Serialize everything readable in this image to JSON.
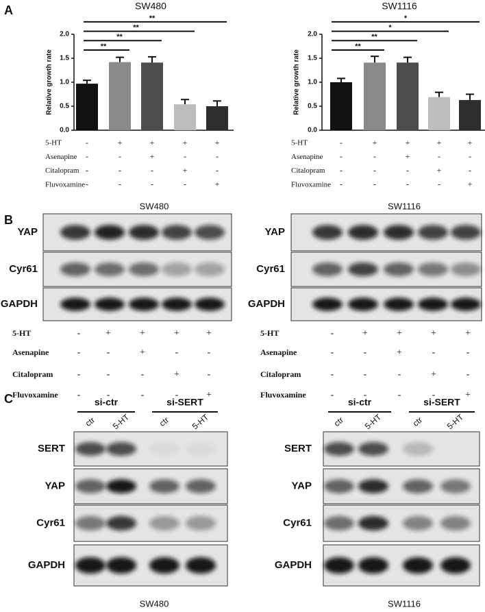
{
  "panel_a": {
    "label": "A"
  },
  "chart_data": [
    {
      "type": "bar",
      "title": "SW480",
      "y_label": "Relative growth rate",
      "categories": [
        null,
        null,
        null,
        null,
        null
      ],
      "values": [
        0.97,
        1.42,
        1.41,
        0.54,
        0.5
      ],
      "errors": [
        0.07,
        0.1,
        0.12,
        0.1,
        0.11
      ],
      "colors": [
        "#111111",
        "#8a8a8a",
        "#4d4d4d",
        "#bdbdbd",
        "#2e2e2e"
      ],
      "ylim": [
        0,
        2
      ],
      "yticks": [
        {
          "value": 0,
          "label": "0.0"
        },
        {
          "value": 0.5,
          "label": "0.5"
        },
        {
          "value": 1,
          "label": "1.0"
        },
        {
          "value": 1.5,
          "label": "1.5"
        },
        {
          "value": 2,
          "label": "2.0"
        }
      ],
      "significance": [
        "**",
        "**",
        "**",
        "**"
      ],
      "treatments": [
        {
          "name": "5-HT",
          "signs": [
            "-",
            "+",
            "+",
            "+",
            "+"
          ]
        },
        {
          "name": "Asenapine",
          "signs": [
            "-",
            "-",
            "+",
            "-",
            "-"
          ]
        },
        {
          "name": "Citalopram",
          "signs": [
            "-",
            "-",
            "-",
            "+",
            "-"
          ]
        },
        {
          "name": "Fluvoxamine",
          "signs": [
            "-",
            "-",
            "-",
            "-",
            "+"
          ]
        }
      ]
    },
    {
      "type": "bar",
      "title": "SW1116",
      "y_label": "Relative growth rate",
      "categories": [
        null,
        null,
        null,
        null,
        null
      ],
      "values": [
        1.0,
        1.41,
        1.41,
        0.69,
        0.63
      ],
      "errors": [
        0.08,
        0.13,
        0.11,
        0.1,
        0.12
      ],
      "colors": [
        "#111111",
        "#8a8a8a",
        "#4d4d4d",
        "#bdbdbd",
        "#2e2e2e"
      ],
      "ylim": [
        0,
        2
      ],
      "yticks": [
        {
          "value": 0,
          "label": "0.0"
        },
        {
          "value": 0.5,
          "label": "0.5"
        },
        {
          "value": 1,
          "label": "1.0"
        },
        {
          "value": 1.5,
          "label": "1.5"
        },
        {
          "value": 2,
          "label": "2.0"
        }
      ],
      "significance": [
        "**",
        "**",
        "*",
        "*"
      ],
      "treatments": [
        {
          "name": "5-HT",
          "signs": [
            "-",
            "+",
            "+",
            "+",
            "+"
          ]
        },
        {
          "name": "Asenapine",
          "signs": [
            "-",
            "-",
            "+",
            "-",
            "-"
          ]
        },
        {
          "name": "Citalopram",
          "signs": [
            "-",
            "-",
            "-",
            "+",
            "-"
          ]
        },
        {
          "name": "Fluvoxamine",
          "signs": [
            "-",
            "-",
            "-",
            "-",
            "+"
          ]
        }
      ]
    }
  ],
  "panel_b": {
    "label": "B",
    "blots": [
      {
        "title": "SW480",
        "rows": [
          "YAP",
          "Cyr61",
          "GAPDH"
        ],
        "treatments": [
          {
            "name": "5-HT",
            "signs": [
              "-",
              "+",
              "+",
              "+",
              "+"
            ]
          },
          {
            "name": "Asenapine",
            "signs": [
              "-",
              "-",
              "+",
              "-",
              "-"
            ]
          },
          {
            "name": "Citalopram",
            "signs": [
              "-",
              "-",
              "-",
              "+",
              "-"
            ]
          },
          {
            "name": "Fluvoxamine",
            "signs": [
              "-",
              "-",
              "-",
              "-",
              "+"
            ]
          }
        ]
      },
      {
        "title": "SW1116",
        "rows": [
          "YAP",
          "Cyr61",
          "GAPDH"
        ],
        "treatments": [
          {
            "name": "5-HT",
            "signs": [
              "-",
              "+",
              "+",
              "+",
              "+"
            ]
          },
          {
            "name": "Asenapine",
            "signs": [
              "-",
              "-",
              "+",
              "-",
              "-"
            ]
          },
          {
            "name": "Citalopram",
            "signs": [
              "-",
              "-",
              "-",
              "+",
              "-"
            ]
          },
          {
            "name": "Fluvoxamine",
            "signs": [
              "-",
              "-",
              "-",
              "-",
              "+"
            ]
          }
        ]
      }
    ]
  },
  "panel_c": {
    "label": "C",
    "blots": [
      {
        "caption": "SW480",
        "groups": [
          {
            "name": "si-ctr",
            "lanes": [
              "ctr",
              "5-HT"
            ]
          },
          {
            "name": "si-SERT",
            "lanes": [
              "ctr",
              "5-HT"
            ]
          }
        ],
        "rows": [
          "SERT",
          "YAP",
          "Cyr61",
          "GAPDH"
        ]
      },
      {
        "caption": "SW1116",
        "groups": [
          {
            "name": "si-ctr",
            "lanes": [
              "ctr",
              "5-HT"
            ]
          },
          {
            "name": "si-SERT",
            "lanes": [
              "ctr",
              "5-HT"
            ]
          }
        ],
        "rows": [
          "SERT",
          "YAP",
          "Cyr61",
          "GAPDH"
        ]
      }
    ]
  }
}
